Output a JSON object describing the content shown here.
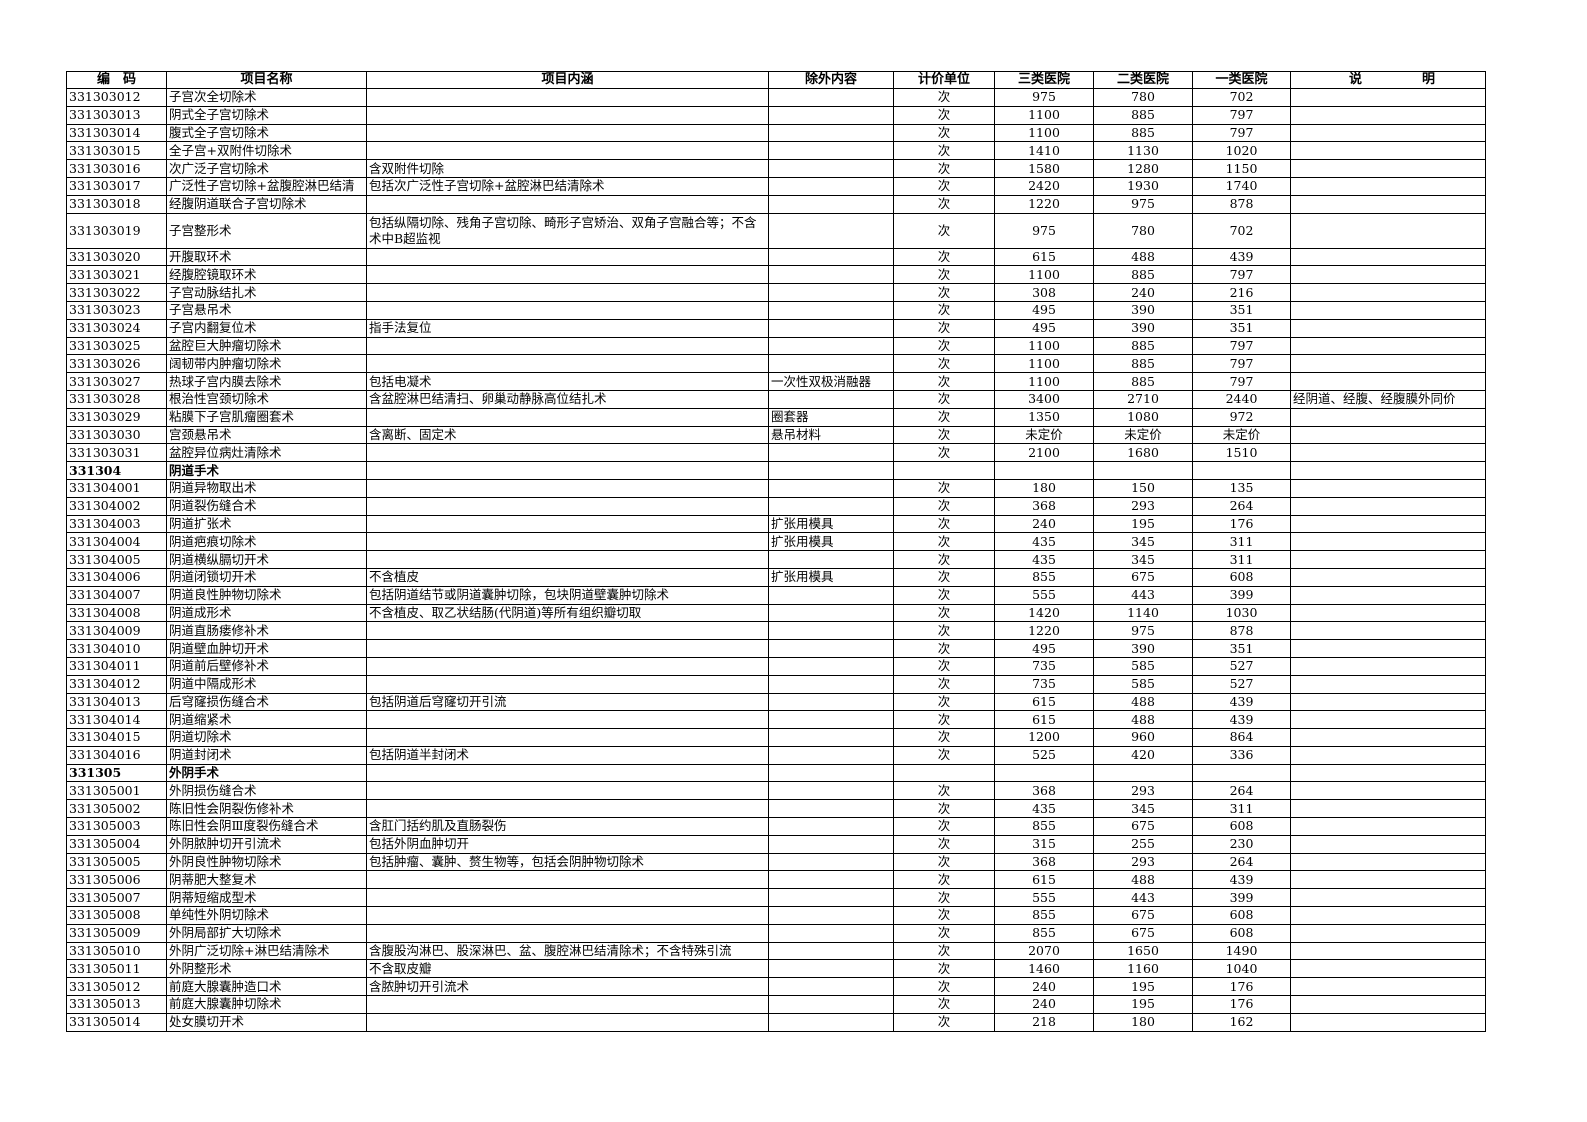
{
  "headers": {
    "code": "编　码",
    "name": "项目名称",
    "content": "项目内涵",
    "excluded": "除外内容",
    "unit": "计价单位",
    "class3": "三类医院",
    "class2": "二类医院",
    "class1": "一类医院",
    "note_a": "说",
    "note_b": "明"
  },
  "rows": [
    {
      "code": "331303012",
      "name": "子宫次全切除术",
      "content": "",
      "excluded": "",
      "unit": "次",
      "p3": "975",
      "p2": "780",
      "p1": "702",
      "note": ""
    },
    {
      "code": "331303013",
      "name": "阴式全子宫切除术",
      "content": "",
      "excluded": "",
      "unit": "次",
      "p3": "1100",
      "p2": "885",
      "p1": "797",
      "note": ""
    },
    {
      "code": "331303014",
      "name": "腹式全子宫切除术",
      "content": "",
      "excluded": "",
      "unit": "次",
      "p3": "1100",
      "p2": "885",
      "p1": "797",
      "note": ""
    },
    {
      "code": "331303015",
      "name": "全子宫+双附件切除术",
      "content": "",
      "excluded": "",
      "unit": "次",
      "p3": "1410",
      "p2": "1130",
      "p1": "1020",
      "note": ""
    },
    {
      "code": "331303016",
      "name": "次广泛子宫切除术",
      "content": "含双附件切除",
      "excluded": "",
      "unit": "次",
      "p3": "1580",
      "p2": "1280",
      "p1": "1150",
      "note": ""
    },
    {
      "code": "331303017",
      "name": "广泛性子宫切除+盆腹腔淋巴结清",
      "content": "包括次广泛性子宫切除+盆腔淋巴结清除术",
      "excluded": "",
      "unit": "次",
      "p3": "2420",
      "p2": "1930",
      "p1": "1740",
      "note": ""
    },
    {
      "code": "331303018",
      "name": "经腹阴道联合子宫切除术",
      "content": "",
      "excluded": "",
      "unit": "次",
      "p3": "1220",
      "p2": "975",
      "p1": "878",
      "note": ""
    },
    {
      "code": "331303019",
      "name": "子宫整形术",
      "content": "包括纵隔切除、残角子宫切除、畸形子宫矫治、双角子宫融合等；不含术中B超监视",
      "excluded": "",
      "unit": "次",
      "p3": "975",
      "p2": "780",
      "p1": "702",
      "note": "",
      "tall": true
    },
    {
      "code": "331303020",
      "name": "开腹取环术",
      "content": "",
      "excluded": "",
      "unit": "次",
      "p3": "615",
      "p2": "488",
      "p1": "439",
      "note": ""
    },
    {
      "code": "331303021",
      "name": "经腹腔镜取环术",
      "content": "",
      "excluded": "",
      "unit": "次",
      "p3": "1100",
      "p2": "885",
      "p1": "797",
      "note": ""
    },
    {
      "code": "331303022",
      "name": "子宫动脉结扎术",
      "content": "",
      "excluded": "",
      "unit": "次",
      "p3": "308",
      "p2": "240",
      "p1": "216",
      "note": ""
    },
    {
      "code": "331303023",
      "name": "子宫悬吊术",
      "content": "",
      "excluded": "",
      "unit": "次",
      "p3": "495",
      "p2": "390",
      "p1": "351",
      "note": ""
    },
    {
      "code": "331303024",
      "name": "子宫内翻复位术",
      "content": "指手法复位",
      "excluded": "",
      "unit": "次",
      "p3": "495",
      "p2": "390",
      "p1": "351",
      "note": ""
    },
    {
      "code": "331303025",
      "name": "盆腔巨大肿瘤切除术",
      "content": "",
      "excluded": "",
      "unit": "次",
      "p3": "1100",
      "p2": "885",
      "p1": "797",
      "note": ""
    },
    {
      "code": "331303026",
      "name": "阔韧带内肿瘤切除术",
      "content": "",
      "excluded": "",
      "unit": "次",
      "p3": "1100",
      "p2": "885",
      "p1": "797",
      "note": ""
    },
    {
      "code": "331303027",
      "name": "热球子宫内膜去除术",
      "content": "包括电凝术",
      "excluded": "一次性双极消融器",
      "unit": "次",
      "p3": "1100",
      "p2": "885",
      "p1": "797",
      "note": ""
    },
    {
      "code": "331303028",
      "name": "根治性宫颈切除术",
      "content": "含盆腔淋巴结清扫、卵巢动静脉高位结扎术",
      "excluded": "",
      "unit": "次",
      "p3": "3400",
      "p2": "2710",
      "p1": "2440",
      "note": "经阴道、经腹、经腹膜外同价"
    },
    {
      "code": "331303029",
      "name": "粘膜下子宫肌瘤圈套术",
      "content": "",
      "excluded": "圈套器",
      "unit": "次",
      "p3": "1350",
      "p2": "1080",
      "p1": "972",
      "note": ""
    },
    {
      "code": "331303030",
      "name": "宫颈悬吊术",
      "content": "含离断、固定术",
      "excluded": "悬吊材料",
      "unit": "次",
      "p3": "未定价",
      "p2": "未定价",
      "p1": "未定价",
      "note": ""
    },
    {
      "code": "331303031",
      "name": "盆腔异位病灶清除术",
      "content": "",
      "excluded": "",
      "unit": "次",
      "p3": "2100",
      "p2": "1680",
      "p1": "1510",
      "note": ""
    },
    {
      "code": "331304",
      "name": "阴道手术",
      "content": "",
      "excluded": "",
      "unit": "",
      "p3": "",
      "p2": "",
      "p1": "",
      "note": "",
      "section": true
    },
    {
      "code": "331304001",
      "name": "阴道异物取出术",
      "content": "",
      "excluded": "",
      "unit": "次",
      "p3": "180",
      "p2": "150",
      "p1": "135",
      "note": ""
    },
    {
      "code": "331304002",
      "name": "阴道裂伤缝合术",
      "content": "",
      "excluded": "",
      "unit": "次",
      "p3": "368",
      "p2": "293",
      "p1": "264",
      "note": ""
    },
    {
      "code": "331304003",
      "name": "阴道扩张术",
      "content": "",
      "excluded": "扩张用模具",
      "unit": "次",
      "p3": "240",
      "p2": "195",
      "p1": "176",
      "note": ""
    },
    {
      "code": "331304004",
      "name": "阴道疤痕切除术",
      "content": "",
      "excluded": "扩张用模具",
      "unit": "次",
      "p3": "435",
      "p2": "345",
      "p1": "311",
      "note": ""
    },
    {
      "code": "331304005",
      "name": "阴道横纵膈切开术",
      "content": "",
      "excluded": "",
      "unit": "次",
      "p3": "435",
      "p2": "345",
      "p1": "311",
      "note": ""
    },
    {
      "code": "331304006",
      "name": "阴道闭锁切开术",
      "content": "不含植皮",
      "excluded": "扩张用模具",
      "unit": "次",
      "p3": "855",
      "p2": "675",
      "p1": "608",
      "note": ""
    },
    {
      "code": "331304007",
      "name": "阴道良性肿物切除术",
      "content": "包括阴道结节或阴道囊肿切除，包块阴道壁囊肿切除术",
      "excluded": "",
      "unit": "次",
      "p3": "555",
      "p2": "443",
      "p1": "399",
      "note": ""
    },
    {
      "code": "331304008",
      "name": "阴道成形术",
      "content": "不含植皮、取乙状结肠(代阴道)等所有组织瓣切取",
      "excluded": "",
      "unit": "次",
      "p3": "1420",
      "p2": "1140",
      "p1": "1030",
      "note": ""
    },
    {
      "code": "331304009",
      "name": "阴道直肠瘘修补术",
      "content": "",
      "excluded": "",
      "unit": "次",
      "p3": "1220",
      "p2": "975",
      "p1": "878",
      "note": ""
    },
    {
      "code": "331304010",
      "name": "阴道壁血肿切开术",
      "content": "",
      "excluded": "",
      "unit": "次",
      "p3": "495",
      "p2": "390",
      "p1": "351",
      "note": ""
    },
    {
      "code": "331304011",
      "name": "阴道前后壁修补术",
      "content": "",
      "excluded": "",
      "unit": "次",
      "p3": "735",
      "p2": "585",
      "p1": "527",
      "note": ""
    },
    {
      "code": "331304012",
      "name": "阴道中隔成形术",
      "content": "",
      "excluded": "",
      "unit": "次",
      "p3": "735",
      "p2": "585",
      "p1": "527",
      "note": ""
    },
    {
      "code": "331304013",
      "name": "后穹窿损伤缝合术",
      "content": "包括阴道后穹窿切开引流",
      "excluded": "",
      "unit": "次",
      "p3": "615",
      "p2": "488",
      "p1": "439",
      "note": ""
    },
    {
      "code": "331304014",
      "name": "阴道缩紧术",
      "content": "",
      "excluded": "",
      "unit": "次",
      "p3": "615",
      "p2": "488",
      "p1": "439",
      "note": ""
    },
    {
      "code": "331304015",
      "name": "阴道切除术",
      "content": "",
      "excluded": "",
      "unit": "次",
      "p3": "1200",
      "p2": "960",
      "p1": "864",
      "note": ""
    },
    {
      "code": "331304016",
      "name": "阴道封闭术",
      "content": "包括阴道半封闭术",
      "excluded": "",
      "unit": "次",
      "p3": "525",
      "p2": "420",
      "p1": "336",
      "note": ""
    },
    {
      "code": "331305",
      "name": "外阴手术",
      "content": "",
      "excluded": "",
      "unit": "",
      "p3": "",
      "p2": "",
      "p1": "",
      "note": "",
      "section": true
    },
    {
      "code": "331305001",
      "name": "外阴损伤缝合术",
      "content": "",
      "excluded": "",
      "unit": "次",
      "p3": "368",
      "p2": "293",
      "p1": "264",
      "note": ""
    },
    {
      "code": "331305002",
      "name": "陈旧性会阴裂伤修补术",
      "content": "",
      "excluded": "",
      "unit": "次",
      "p3": "435",
      "p2": "345",
      "p1": "311",
      "note": ""
    },
    {
      "code": "331305003",
      "name": "陈旧性会阴Ⅲ度裂伤缝合术",
      "content": "含肛门括约肌及直肠裂伤",
      "excluded": "",
      "unit": "次",
      "p3": "855",
      "p2": "675",
      "p1": "608",
      "note": ""
    },
    {
      "code": "331305004",
      "name": "外阴脓肿切开引流术",
      "content": "包括外阴血肿切开",
      "excluded": "",
      "unit": "次",
      "p3": "315",
      "p2": "255",
      "p1": "230",
      "note": ""
    },
    {
      "code": "331305005",
      "name": "外阴良性肿物切除术",
      "content": "包括肿瘤、囊肿、赘生物等，包括会阴肿物切除术",
      "excluded": "",
      "unit": "次",
      "p3": "368",
      "p2": "293",
      "p1": "264",
      "note": ""
    },
    {
      "code": "331305006",
      "name": "阴蒂肥大整复术",
      "content": "",
      "excluded": "",
      "unit": "次",
      "p3": "615",
      "p2": "488",
      "p1": "439",
      "note": ""
    },
    {
      "code": "331305007",
      "name": "阴蒂短缩成型术",
      "content": "",
      "excluded": "",
      "unit": "次",
      "p3": "555",
      "p2": "443",
      "p1": "399",
      "note": ""
    },
    {
      "code": "331305008",
      "name": "单纯性外阴切除术",
      "content": "",
      "excluded": "",
      "unit": "次",
      "p3": "855",
      "p2": "675",
      "p1": "608",
      "note": ""
    },
    {
      "code": "331305009",
      "name": "外阴局部扩大切除术",
      "content": "",
      "excluded": "",
      "unit": "次",
      "p3": "855",
      "p2": "675",
      "p1": "608",
      "note": ""
    },
    {
      "code": "331305010",
      "name": "外阴广泛切除+淋巴结清除术",
      "content": "含腹股沟淋巴、股深淋巴、盆、腹腔淋巴结清除术；不含特殊引流",
      "excluded": "",
      "unit": "次",
      "p3": "2070",
      "p2": "1650",
      "p1": "1490",
      "note": ""
    },
    {
      "code": "331305011",
      "name": "外阴整形术",
      "content": "不含取皮瓣",
      "excluded": "",
      "unit": "次",
      "p3": "1460",
      "p2": "1160",
      "p1": "1040",
      "note": ""
    },
    {
      "code": "331305012",
      "name": "前庭大腺囊肿造口术",
      "content": "含脓肿切开引流术",
      "excluded": "",
      "unit": "次",
      "p3": "240",
      "p2": "195",
      "p1": "176",
      "note": ""
    },
    {
      "code": "331305013",
      "name": "前庭大腺囊肿切除术",
      "content": "",
      "excluded": "",
      "unit": "次",
      "p3": "240",
      "p2": "195",
      "p1": "176",
      "note": ""
    },
    {
      "code": "331305014",
      "name": "处女膜切开术",
      "content": "",
      "excluded": "",
      "unit": "次",
      "p3": "218",
      "p2": "180",
      "p1": "162",
      "note": ""
    }
  ]
}
